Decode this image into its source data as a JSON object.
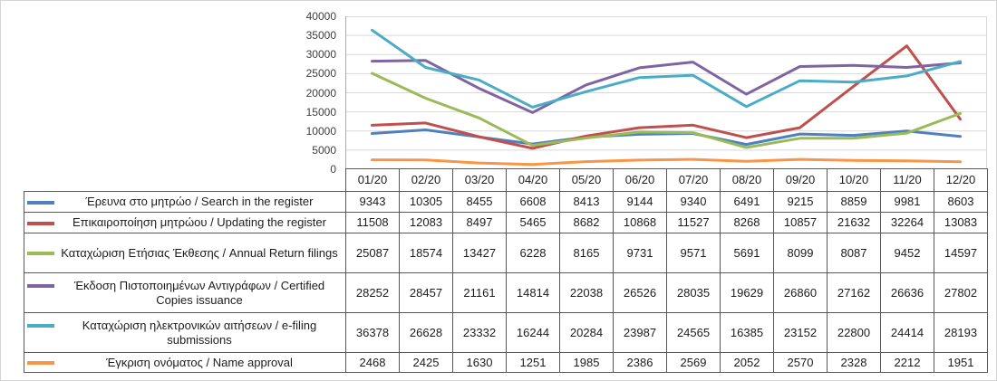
{
  "chart_data": {
    "type": "line",
    "title": "",
    "xlabel": "",
    "ylabel": "",
    "ylim": [
      0,
      40000
    ],
    "ytick_step": 5000,
    "yticks": [
      0,
      5000,
      10000,
      15000,
      20000,
      25000,
      30000,
      35000,
      40000
    ],
    "grid": true,
    "legend_position": "data-table-left",
    "categories": [
      "01/20",
      "02/20",
      "03/20",
      "04/20",
      "05/20",
      "06/20",
      "07/20",
      "08/20",
      "09/20",
      "10/20",
      "11/20",
      "12/20"
    ],
    "series": [
      {
        "label": "Έρευνα στο μητρώο / Search in the register",
        "color": "#4F81BD",
        "values": [
          9343,
          10305,
          8455,
          6608,
          8413,
          9144,
          9340,
          6491,
          9215,
          8859,
          9981,
          8603
        ]
      },
      {
        "label": "Επικαιροποίηση μητρώου / Updating the register",
        "color": "#C0504D",
        "values": [
          11508,
          12083,
          8497,
          5465,
          8682,
          10868,
          11527,
          8268,
          10857,
          21632,
          32264,
          13083
        ]
      },
      {
        "label": "Καταχώριση Ετήσιας Έκθεσης / Annual Return filings",
        "color": "#9BBB59",
        "values": [
          25087,
          18574,
          13427,
          6228,
          8165,
          9731,
          9571,
          5691,
          8099,
          8087,
          9452,
          14597
        ]
      },
      {
        "label": "Έκδοση Πιστοποιημένων Αντιγράφων / Certified Copies issuance",
        "color": "#8064A2",
        "values": [
          28252,
          28457,
          21161,
          14814,
          22038,
          26526,
          28035,
          19629,
          26860,
          27162,
          26636,
          27802
        ]
      },
      {
        "label": "Καταχώριση ηλεκτρονικών αιτήσεων / e-filing submissions",
        "color": "#4BACC6",
        "values": [
          36378,
          26628,
          23332,
          16244,
          20284,
          23987,
          24565,
          16385,
          23152,
          22800,
          24414,
          28193
        ]
      },
      {
        "label": "Έγκριση ονόματος / Name approval",
        "color": "#F79646",
        "values": [
          2468,
          2425,
          1630,
          1251,
          1985,
          2386,
          2569,
          2052,
          2570,
          2328,
          2212,
          1951
        ]
      }
    ],
    "colors": {
      "gridline": "#d9d9d9",
      "axis_line": "#ababab",
      "table_border": "#595959",
      "text": "#1c1c1c",
      "axis_text": "#3f3f3f"
    }
  }
}
